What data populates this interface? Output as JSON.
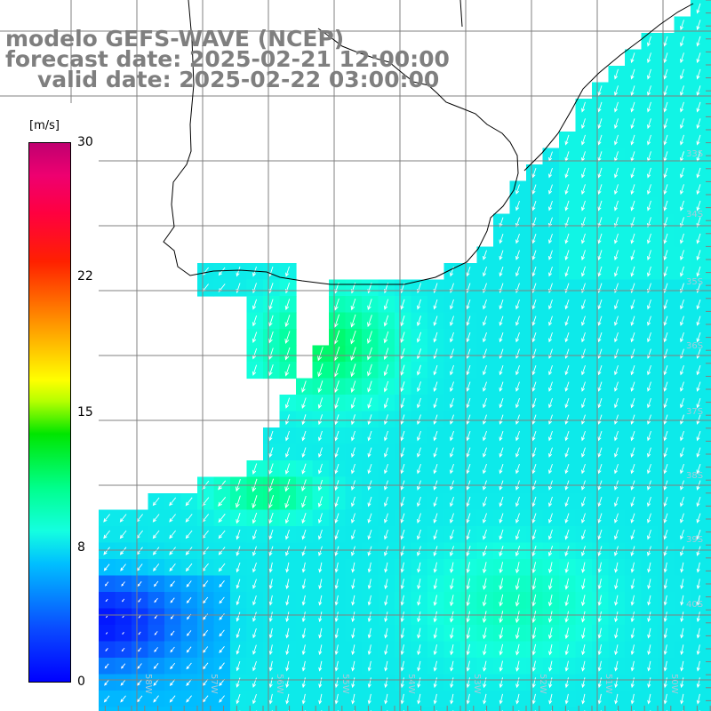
{
  "title": {
    "model": "modelo GEFS-WAVE (NCEP)",
    "forecast": "forecast date: 2025-02-21 12:00:00",
    "valid": "valid date: 2025-02-22 03:00:00"
  },
  "colorbar": {
    "unit": "[m/s]",
    "ticks": [
      "30",
      "22",
      "15",
      "8",
      "0"
    ],
    "min": 0,
    "max": 30
  },
  "grid": {
    "lat_labels": [
      "33S",
      "34S",
      "35S",
      "36S",
      "37S",
      "38S",
      "39S",
      "40S"
    ],
    "lon_labels": [
      "60W",
      "59W",
      "58W",
      "57W",
      "56W",
      "55W",
      "54W",
      "53W",
      "52W",
      "51W",
      "50W",
      "49W"
    ]
  },
  "field": {
    "quantity": "wind speed",
    "direction_general": "from the north-northeast",
    "land_color": "#ffffff",
    "coast_color": "#000000",
    "grid_color": "#808080",
    "arrow_color": "#ffffff"
  }
}
